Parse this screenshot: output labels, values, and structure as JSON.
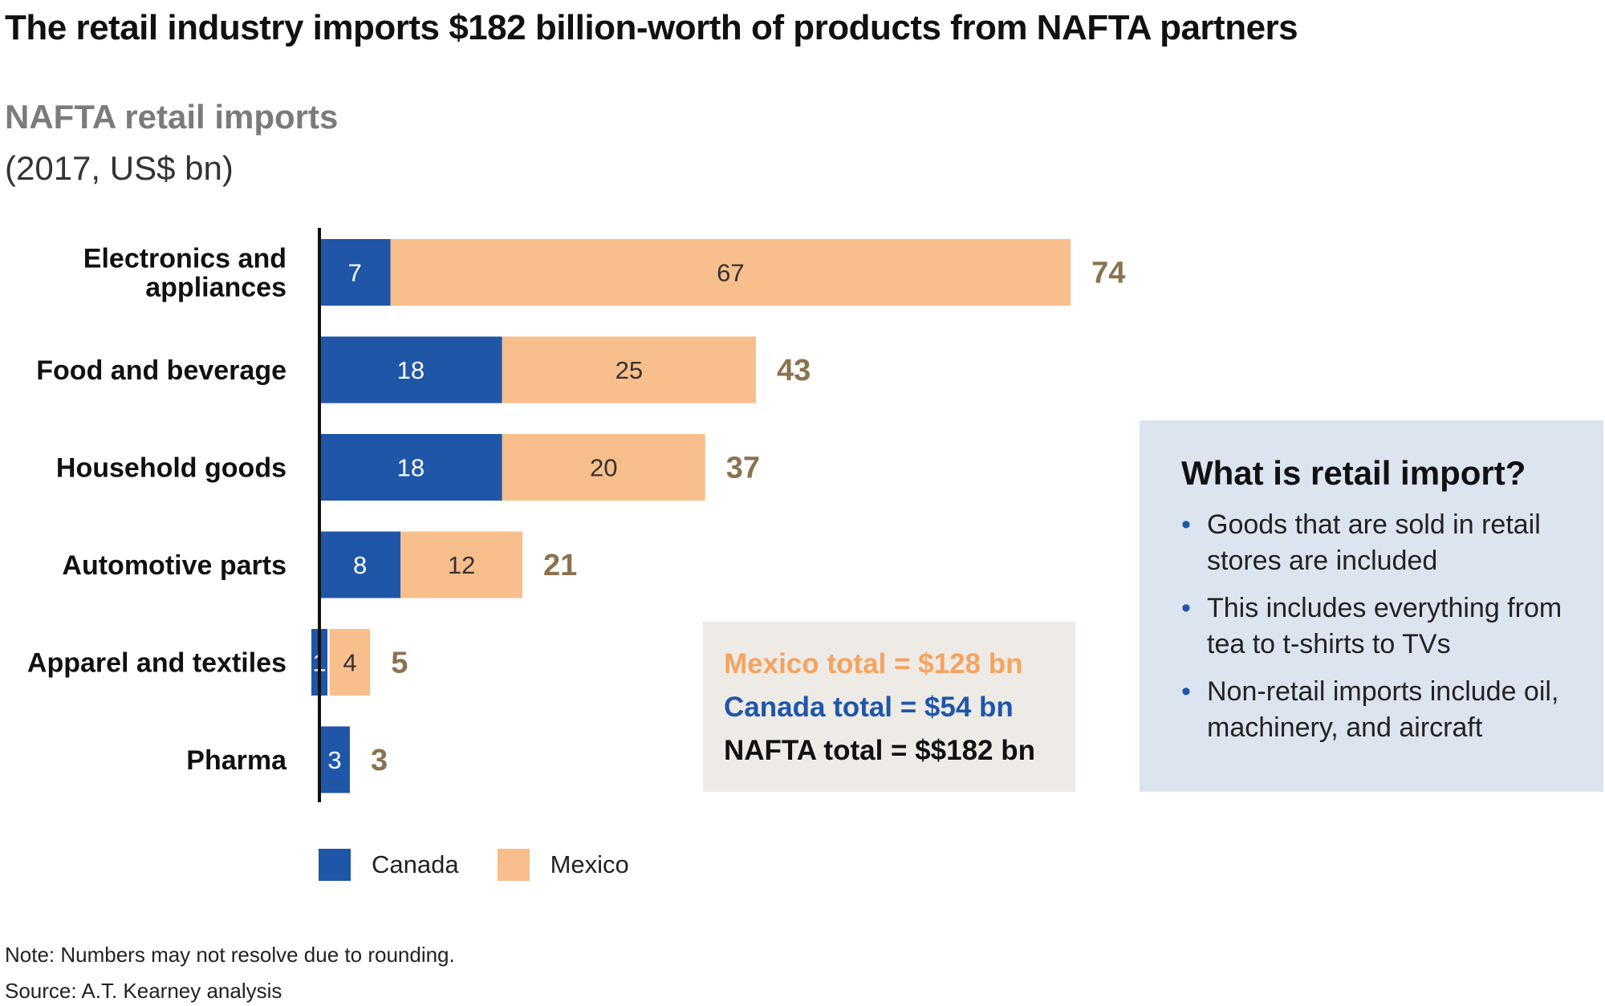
{
  "header": {
    "title": "The retail industry imports $182 billion-worth of products from NAFTA partners",
    "subtitle": "NAFTA retail imports",
    "units": "(2017, US$ bn)"
  },
  "colors": {
    "canada": "#1f56a8",
    "mexico": "#f8be8c",
    "total_label": "#8c7250",
    "mexico_text": "#f6a35e"
  },
  "chart_data": {
    "type": "bar",
    "orientation": "horizontal",
    "stacked": true,
    "categories": [
      "Electronics and appliances",
      "Food and beverage",
      "Household goods",
      "Automotive parts",
      "Apparel and textiles",
      "Pharma"
    ],
    "category_lines": [
      [
        "Electronics and",
        "appliances"
      ],
      [
        "Food and beverage"
      ],
      [
        "Household goods"
      ],
      [
        "Automotive parts"
      ],
      [
        "Apparel and textiles"
      ],
      [
        "Pharma"
      ]
    ],
    "series": [
      {
        "name": "Canada",
        "values": [
          7,
          18,
          18,
          8,
          1,
          3
        ]
      },
      {
        "name": "Mexico",
        "values": [
          67,
          25,
          20,
          12,
          4,
          0
        ]
      }
    ],
    "totals": [
      74,
      43,
      37,
      21,
      5,
      3
    ],
    "xlim": [
      0,
      75
    ],
    "grid": false,
    "legend_position": "bottom-left"
  },
  "legend": {
    "canada_label": "Canada",
    "mexico_label": "Mexico"
  },
  "totals_box": {
    "mexico": "Mexico total = $128 bn",
    "canada": "Canada total = $54 bn",
    "nafta": "NAFTA total = $$182 bn"
  },
  "info_box": {
    "title": "What is retail import?",
    "bullets": [
      "Goods that are sold in retail stores are included",
      "This includes everything from tea to t-shirts to TVs",
      "Non-retail imports include oil, machinery, and aircraft"
    ]
  },
  "footer": {
    "note": "Note: Numbers may not resolve due to rounding.",
    "source": "Source: A.T. Kearney analysis"
  }
}
